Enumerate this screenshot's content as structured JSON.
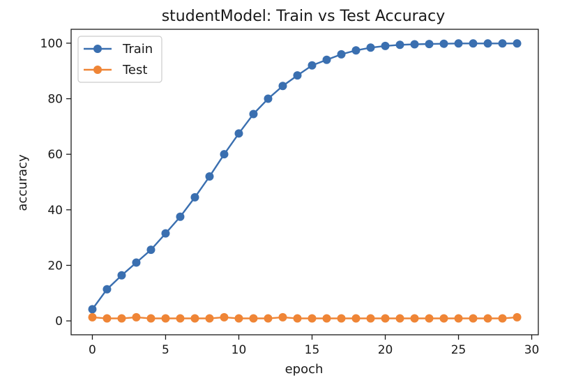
{
  "chart_data": {
    "type": "line",
    "title": "studentModel: Train vs Test Accuracy",
    "xlabel": "epoch",
    "ylabel": "accuracy",
    "xlim": [
      -1.45,
      30.45
    ],
    "ylim": [
      -5,
      105
    ],
    "xticks": [
      0,
      5,
      10,
      15,
      20,
      25,
      30
    ],
    "yticks": [
      0,
      20,
      40,
      60,
      80,
      100
    ],
    "grid": false,
    "legend": "upper-left",
    "x": [
      0,
      1,
      2,
      3,
      4,
      5,
      6,
      7,
      8,
      9,
      10,
      11,
      12,
      13,
      14,
      15,
      16,
      17,
      18,
      19,
      20,
      21,
      22,
      23,
      24,
      25,
      26,
      27,
      28,
      29
    ],
    "series": [
      {
        "name": "Train",
        "color": "#3a6fb0",
        "values": [
          4.2,
          11.4,
          16.4,
          21.0,
          25.6,
          31.5,
          37.5,
          44.5,
          52.0,
          60.0,
          67.5,
          74.5,
          80.0,
          84.6,
          88.4,
          92.0,
          94.0,
          96.0,
          97.4,
          98.4,
          99.0,
          99.4,
          99.6,
          99.7,
          99.8,
          99.9,
          99.9,
          99.9,
          99.9,
          99.9
        ]
      },
      {
        "name": "Test",
        "color": "#ef8536",
        "values": [
          1.3,
          0.9,
          0.9,
          1.3,
          0.9,
          0.9,
          0.9,
          0.9,
          0.9,
          1.3,
          0.9,
          0.9,
          0.9,
          1.3,
          0.9,
          0.9,
          0.9,
          0.9,
          0.9,
          0.9,
          0.9,
          0.9,
          0.9,
          0.9,
          0.9,
          0.9,
          0.9,
          0.9,
          0.9,
          1.3
        ]
      }
    ]
  }
}
